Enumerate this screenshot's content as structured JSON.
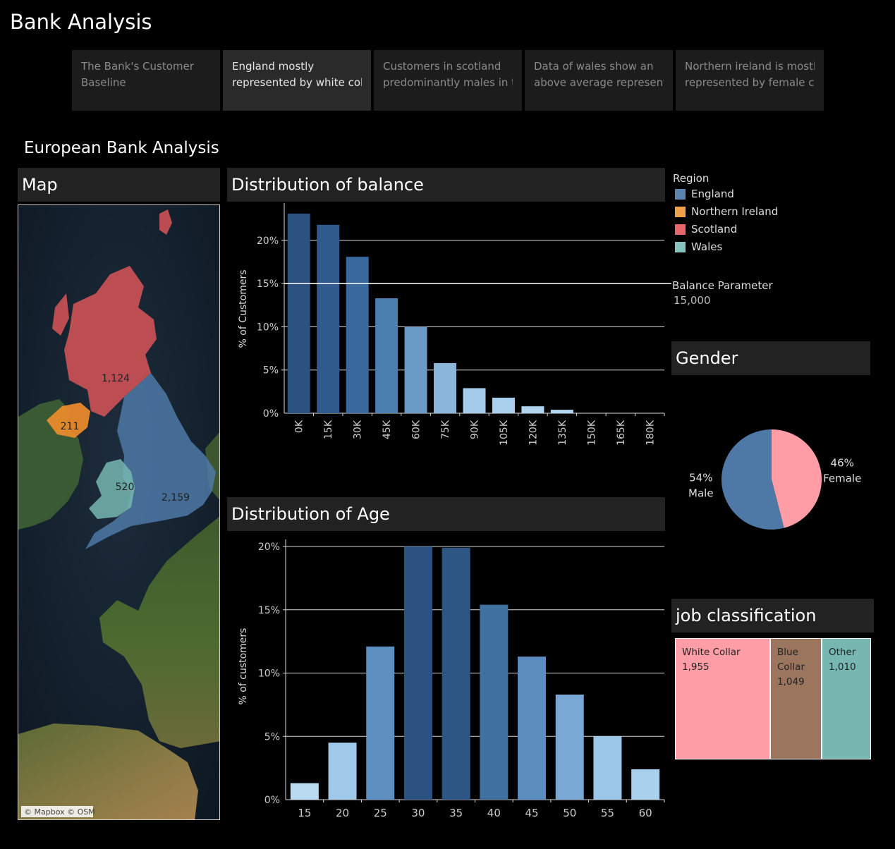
{
  "app": {
    "title": "Bank Analysis"
  },
  "story_tabs": [
    {
      "line1": "The Bank's Customer",
      "line2": "Baseline",
      "active": false
    },
    {
      "line1": "England mostly",
      "line2": "represented by white col..",
      "active": true
    },
    {
      "line1": "Customers in scotland",
      "line2": "predominantly males in t..",
      "active": false
    },
    {
      "line1": "Data of wales show an",
      "line2": "above average represent..",
      "active": false
    },
    {
      "line1": "Northern ireland is mostly",
      "line2": "represented by female c..",
      "active": false
    }
  ],
  "dashboard": {
    "title": "European Bank Analysis"
  },
  "panels": {
    "map": "Map",
    "balance": "Distribution of balance",
    "age": "Distribution of Age",
    "gender": "Gender",
    "job": "job classification"
  },
  "map": {
    "attribution": "© Mapbox © OSM",
    "labels": {
      "scotland": "1,124",
      "northern_ireland": "211",
      "wales": "520",
      "england": "2,159"
    },
    "colors": {
      "england": "#4e79a7",
      "northern_ireland": "#f28e2b",
      "scotland": "#e15759",
      "wales": "#76b7b2"
    }
  },
  "legend": {
    "title": "Region",
    "items": [
      {
        "label": "England",
        "color": "#5b84b1"
      },
      {
        "label": "Northern Ireland",
        "color": "#f0a04b"
      },
      {
        "label": "Scotland",
        "color": "#e8676a"
      },
      {
        "label": "Wales",
        "color": "#87c3bd"
      }
    ]
  },
  "parameter": {
    "label": "Balance Parameter",
    "value": "15,000"
  },
  "chart_data": [
    {
      "type": "bar",
      "title": "Distribution of balance",
      "ylabel": "% of Customers",
      "categories": [
        "0K",
        "15K",
        "30K",
        "45K",
        "60K",
        "75K",
        "90K",
        "105K",
        "120K",
        "135K",
        "150K",
        "165K",
        "180K"
      ],
      "values": [
        23.1,
        21.8,
        18.1,
        13.3,
        10.0,
        5.8,
        2.9,
        1.8,
        0.8,
        0.4,
        0,
        0,
        0
      ],
      "yticks": [
        0,
        5,
        10,
        15,
        20
      ],
      "ytick_labels": [
        "0%",
        "5%",
        "10%",
        "15%",
        "20%"
      ],
      "ylim": [
        0,
        23.5
      ],
      "colors": [
        "#2b5281",
        "#305a8c",
        "#3a699d",
        "#4a7fb0",
        "#6a9ac6",
        "#8bb6da",
        "#a4cbea",
        "#a9cfec",
        "#b0d4ee",
        "#b3d6ef",
        "#b3d6ef",
        "#b3d6ef",
        "#b3d6ef"
      ],
      "grid": true
    },
    {
      "type": "bar",
      "title": "Distribution of Age",
      "ylabel": "% of customers",
      "categories": [
        "15",
        "20",
        "25",
        "30",
        "35",
        "40",
        "45",
        "50",
        "55",
        "60"
      ],
      "values": [
        1.3,
        4.5,
        12.1,
        20.0,
        19.9,
        15.4,
        11.3,
        8.3,
        5.0,
        2.4
      ],
      "yticks": [
        0,
        5,
        10,
        15,
        20
      ],
      "ytick_labels": [
        "0%",
        "5%",
        "10%",
        "15%",
        "20%"
      ],
      "ylim": [
        0,
        20
      ],
      "colors": [
        "#b9daf1",
        "#9fc8e9",
        "#5d8fc0",
        "#2b5281",
        "#2d5685",
        "#40709f",
        "#5b8dbf",
        "#79a8d4",
        "#9cc7e8",
        "#a9d0ed"
      ],
      "grid": true
    },
    {
      "type": "pie",
      "title": "Gender",
      "slices": [
        {
          "label": "Female",
          "pct_label": "46%",
          "value": 46,
          "color": "#ff9da7"
        },
        {
          "label": "Male",
          "pct_label": "54%",
          "value": 54,
          "color": "#4e79a7"
        }
      ]
    },
    {
      "type": "treemap",
      "title": "job classification",
      "items": [
        {
          "line1": "White Collar",
          "line2": "",
          "value_label": "1,955",
          "value": 1955,
          "color": "#ff9da7"
        },
        {
          "line1": "Blue",
          "line2": "Collar",
          "value_label": "1,049",
          "value": 1049,
          "color": "#9c755f"
        },
        {
          "line1": "Other",
          "line2": "",
          "value_label": "1,010",
          "value": 1010,
          "color": "#76b7b2"
        }
      ]
    }
  ]
}
